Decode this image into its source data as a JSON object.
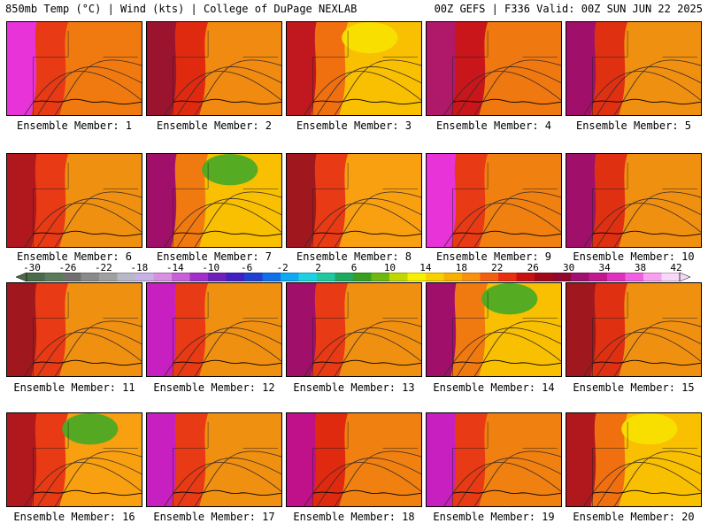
{
  "header": {
    "left": "850mb Temp (°C) | Wind (kts) | College of DuPage NEXLAB",
    "right": "00Z GEFS | F336 Valid: 00Z SUN JUN 22 2025"
  },
  "members": [
    {
      "label": "Ensemble Member: 1",
      "warm_west": "#e833d8",
      "mid": "#e83a14",
      "east": "#f07a10",
      "cool_patch": ""
    },
    {
      "label": "Ensemble Member: 2",
      "warm_west": "#9a1430",
      "mid": "#e02a10",
      "east": "#f08a10",
      "cool_patch": ""
    },
    {
      "label": "Ensemble Member: 3",
      "warm_west": "#c0181e",
      "mid": "#f07010",
      "east": "#f8c000",
      "cool_patch": "#f8e000"
    },
    {
      "label": "Ensemble Member: 4",
      "warm_west": "#b0186a",
      "mid": "#c8161a",
      "east": "#f07810",
      "cool_patch": ""
    },
    {
      "label": "Ensemble Member: 5",
      "warm_west": "#a0106a",
      "mid": "#e03012",
      "east": "#f09010",
      "cool_patch": ""
    },
    {
      "label": "Ensemble Member: 6",
      "warm_west": "#b0181e",
      "mid": "#e83a14",
      "east": "#f09010",
      "cool_patch": ""
    },
    {
      "label": "Ensemble Member: 7",
      "warm_west": "#a0106a",
      "mid": "#f07a10",
      "east": "#f8c000",
      "cool_patch": "#4caa24"
    },
    {
      "label": "Ensemble Member: 8",
      "warm_west": "#a0181e",
      "mid": "#e83a14",
      "east": "#f8a010",
      "cool_patch": ""
    },
    {
      "label": "Ensemble Member: 9",
      "warm_west": "#e833d8",
      "mid": "#e83a14",
      "east": "#f08010",
      "cool_patch": ""
    },
    {
      "label": "Ensemble Member: 10",
      "warm_west": "#a0106a",
      "mid": "#e03012",
      "east": "#f09010",
      "cool_patch": ""
    },
    {
      "label": "Ensemble Member: 11",
      "warm_west": "#a0181e",
      "mid": "#e83a14",
      "east": "#f09010",
      "cool_patch": ""
    },
    {
      "label": "Ensemble Member: 12",
      "warm_west": "#c820c0",
      "mid": "#e83a14",
      "east": "#f09010",
      "cool_patch": ""
    },
    {
      "label": "Ensemble Member: 13",
      "warm_west": "#a0106a",
      "mid": "#e83a14",
      "east": "#f09010",
      "cool_patch": ""
    },
    {
      "label": "Ensemble Member: 14",
      "warm_west": "#a0106a",
      "mid": "#f07a10",
      "east": "#f8c000",
      "cool_patch": "#4caa24"
    },
    {
      "label": "Ensemble Member: 15",
      "warm_west": "#a0181e",
      "mid": "#e03012",
      "east": "#f09010",
      "cool_patch": ""
    },
    {
      "label": "Ensemble Member: 16",
      "warm_west": "#b0181e",
      "mid": "#e83a14",
      "east": "#f8a010",
      "cool_patch": "#4caa24"
    },
    {
      "label": "Ensemble Member: 17",
      "warm_west": "#c820c0",
      "mid": "#e83a14",
      "east": "#f09010",
      "cool_patch": ""
    },
    {
      "label": "Ensemble Member: 18",
      "warm_west": "#c0108a",
      "mid": "#e02a10",
      "east": "#f08010",
      "cool_patch": ""
    },
    {
      "label": "Ensemble Member: 19",
      "warm_west": "#c820c0",
      "mid": "#e83a14",
      "east": "#f08010",
      "cool_patch": ""
    },
    {
      "label": "Ensemble Member: 20",
      "warm_west": "#b0181e",
      "mid": "#f07010",
      "east": "#f8c000",
      "cool_patch": "#f8e000"
    }
  ],
  "colorbar": {
    "tick_labels": [
      "-30",
      "-26",
      "-22",
      "-18",
      "-14",
      "-10",
      "-6",
      "-2",
      "2",
      "6",
      "10",
      "14",
      "18",
      "22",
      "26",
      "30",
      "34",
      "38",
      "42"
    ],
    "colors": [
      "#4a6a4a",
      "#5c7a5c",
      "#707070",
      "#8a8a8a",
      "#a0a0a0",
      "#b8b8c8",
      "#c8b0e8",
      "#d890e0",
      "#c860d8",
      "#a030c8",
      "#7020b8",
      "#4020c0",
      "#2040d0",
      "#1070e8",
      "#10a8f0",
      "#20d0e0",
      "#20c8a0",
      "#20a860",
      "#38a020",
      "#70b810",
      "#c0d800",
      "#f8f000",
      "#f8d000",
      "#f8b000",
      "#f89010",
      "#f06010",
      "#e83010",
      "#c81010",
      "#a00818",
      "#900830",
      "#a01070",
      "#c01890",
      "#e030c0",
      "#f060e0",
      "#f8a0f0",
      "#f8d8f8"
    ]
  }
}
